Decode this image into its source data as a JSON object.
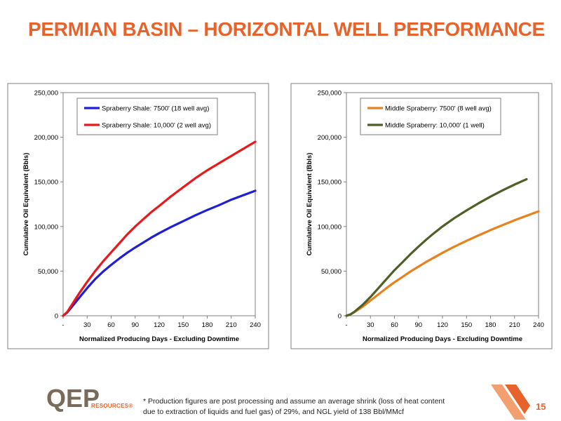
{
  "page": {
    "title": "PERMIAN BASIN – HORIZONTAL WELL PERFORMANCE",
    "footnote_line1": "* Production figures are post processing and assume an average shrink (loss of heat content",
    "footnote_line2": "due to extraction of liquids and fuel gas) of 29%, and NGL yield of 138 Bbl/MMcf",
    "page_number": "15",
    "logo_text": "QEP",
    "logo_subtext": "RESOURCES",
    "logo_mark": "®",
    "colors": {
      "title": "#e8632b",
      "logo": "#7a6a5a",
      "accent": "#e8632b"
    }
  },
  "chart_data": [
    {
      "type": "line",
      "xlabel": "Normalized Producing Days - Excluding Downtime",
      "ylabel": "Cumulative Oil Equivalent (Bbls)",
      "xlim": [
        0,
        240
      ],
      "ylim": [
        0,
        250000
      ],
      "xticks": [
        0,
        30,
        60,
        90,
        120,
        150,
        180,
        210,
        240
      ],
      "xtick_labels": [
        "-",
        "30",
        "60",
        "90",
        "120",
        "150",
        "180",
        "210",
        "240"
      ],
      "yticks": [
        0,
        50000,
        100000,
        150000,
        200000,
        250000
      ],
      "ytick_labels": [
        "0",
        "50,000",
        "100,000",
        "150,000",
        "200,000",
        "250,000"
      ],
      "grid": false,
      "legend": "top-left",
      "series": [
        {
          "name": "Spraberry Shale: 7500' (18 well avg)",
          "color": "#1f1fd6",
          "x": [
            0,
            5,
            10,
            20,
            30,
            40,
            50,
            60,
            70,
            80,
            90,
            100,
            110,
            120,
            135,
            150,
            165,
            180,
            195,
            210,
            225,
            240
          ],
          "y": [
            0,
            3500,
            9000,
            20000,
            31000,
            41000,
            49500,
            57000,
            64000,
            70500,
            76500,
            82000,
            87500,
            92500,
            99500,
            106000,
            112500,
            118500,
            124000,
            130000,
            135000,
            140000
          ]
        },
        {
          "name": "Spraberry Shale: 10,000' (2 well avg)",
          "color": "#e8191b",
          "x": [
            0,
            5,
            10,
            20,
            30,
            40,
            50,
            60,
            70,
            80,
            90,
            100,
            110,
            120,
            135,
            150,
            165,
            180,
            195,
            210,
            225,
            240
          ],
          "y": [
            0,
            4000,
            11000,
            25000,
            38000,
            50000,
            61000,
            71000,
            81000,
            91000,
            100000,
            108000,
            116000,
            123000,
            134000,
            144000,
            154000,
            163000,
            171000,
            179000,
            187000,
            195000
          ]
        }
      ]
    },
    {
      "type": "line",
      "xlabel": "Normalized Producing Days - Excluding Downtime",
      "ylabel": "Cumulative Oil Equivalent (Bbls)",
      "xlim": [
        0,
        240
      ],
      "ylim": [
        0,
        250000
      ],
      "xticks": [
        0,
        30,
        60,
        90,
        120,
        150,
        180,
        210,
        240
      ],
      "xtick_labels": [
        "-",
        "30",
        "60",
        "90",
        "120",
        "150",
        "180",
        "210",
        "240"
      ],
      "yticks": [
        0,
        50000,
        100000,
        150000,
        200000,
        250000
      ],
      "ytick_labels": [
        "0",
        "50,000",
        "100,000",
        "150,000",
        "200,000",
        "250,000"
      ],
      "grid": false,
      "legend": "top-left",
      "series": [
        {
          "name": "Middle Spraberry: 7500' (8 well avg)",
          "color": "#e8821e",
          "x": [
            0,
            5,
            10,
            20,
            30,
            40,
            50,
            60,
            70,
            80,
            90,
            100,
            110,
            120,
            135,
            150,
            165,
            180,
            195,
            210,
            225,
            240
          ],
          "y": [
            0,
            1500,
            4000,
            10000,
            17000,
            24000,
            31000,
            37500,
            43500,
            49500,
            55000,
            60500,
            65500,
            70500,
            77500,
            84000,
            90000,
            96000,
            101500,
            107000,
            112000,
            117000
          ]
        },
        {
          "name": "Middle Spraberry: 10,000' (1 well)",
          "color": "#4e5f27",
          "x": [
            0,
            5,
            10,
            20,
            30,
            40,
            50,
            60,
            70,
            80,
            90,
            100,
            110,
            120,
            135,
            150,
            165,
            180,
            195,
            210,
            225
          ],
          "y": [
            0,
            1500,
            4500,
            12000,
            21000,
            31000,
            41000,
            51000,
            60000,
            69000,
            77500,
            85500,
            93000,
            100000,
            109500,
            118000,
            126000,
            133500,
            140500,
            147000,
            153000
          ]
        }
      ]
    }
  ]
}
